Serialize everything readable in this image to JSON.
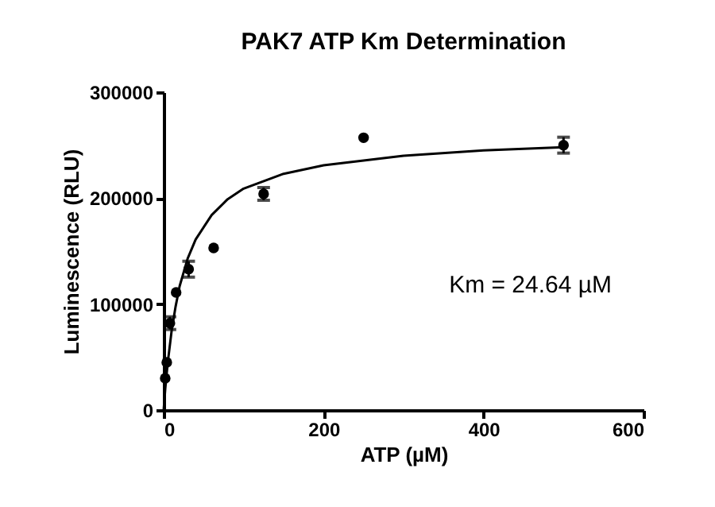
{
  "chart_data": {
    "type": "scatter",
    "title": "PAK7 ATP Km Determination",
    "xlabel": "ATP (µM)",
    "ylabel": "Luminescence (RLU)",
    "xlim": [
      0,
      600
    ],
    "xticks": [
      0,
      200,
      400,
      600
    ],
    "ylim": [
      0,
      300000
    ],
    "yticks": [
      0,
      100000,
      200000,
      300000
    ],
    "grid": false,
    "legend": false,
    "annotations": [
      "Km = 24.64 µM"
    ],
    "series": [
      {
        "color": "#000000",
        "marker": "circle",
        "x": [
          1.95,
          3.9,
          7.8,
          15.6,
          31.25,
          62.5,
          125,
          250,
          500
        ],
        "values": [
          30000,
          45000,
          82000,
          111000,
          133000,
          153000,
          204000,
          257000,
          250000
        ],
        "errors": [
          null,
          null,
          6000,
          null,
          7500,
          null,
          6000,
          null,
          7500
        ]
      },
      {
        "type": "line",
        "color": "#000000",
        "marker": "none",
        "line_style": "solid",
        "x": [
          0,
          2,
          5,
          10,
          15,
          20,
          30,
          40,
          60,
          80,
          100,
          150,
          200,
          300,
          400,
          500
        ],
        "values": [
          0,
          20000,
          44000,
          75000,
          98000,
          117000,
          143000,
          161000,
          184000,
          199000,
          209000,
          223000,
          231000,
          240000,
          245000,
          248000
        ]
      }
    ]
  }
}
